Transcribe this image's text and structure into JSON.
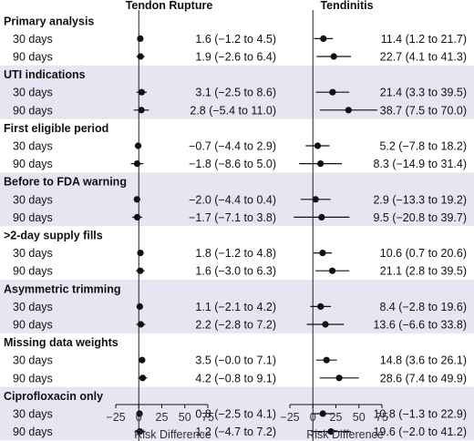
{
  "chart_data": {
    "type": "forest",
    "panels": [
      {
        "title": "Tendon Rupture",
        "xlabel": "Risk Difference",
        "xlim": [
          -25,
          75
        ],
        "ticks": [
          -25,
          0,
          25,
          50,
          75
        ]
      },
      {
        "title": "Tendinitis",
        "xlabel": "Risk Difference",
        "xlim": [
          -25,
          75
        ],
        "ticks": [
          -25,
          0,
          25,
          50,
          75
        ]
      }
    ],
    "reference_line": 0,
    "groups": [
      {
        "name": "Primary analysis",
        "shaded": false,
        "rows": [
          {
            "label": "30 days",
            "tendon_rupture": {
              "est": 1.6,
              "lo": -1.2,
              "hi": 4.5,
              "text": "1.6 (−1.2 to 4.5)"
            },
            "tendinitis": {
              "est": 11.4,
              "lo": 1.2,
              "hi": 21.7,
              "text": "11.4 (1.2 to 21.7)"
            }
          },
          {
            "label": "90 days",
            "tendon_rupture": {
              "est": 1.9,
              "lo": -2.6,
              "hi": 6.4,
              "text": "1.9 (−2.6 to 6.4)"
            },
            "tendinitis": {
              "est": 22.7,
              "lo": 4.1,
              "hi": 41.3,
              "text": "22.7 (4.1 to 41.3)"
            }
          }
        ]
      },
      {
        "name": "UTI indications",
        "shaded": true,
        "rows": [
          {
            "label": "30 days",
            "tendon_rupture": {
              "est": 3.1,
              "lo": -2.5,
              "hi": 8.6,
              "text": "3.1 (−2.5 to 8.6)"
            },
            "tendinitis": {
              "est": 21.4,
              "lo": 3.3,
              "hi": 39.5,
              "text": "21.4 (3.3 to 39.5)"
            }
          },
          {
            "label": "90 days",
            "tendon_rupture": {
              "est": 2.8,
              "lo": -5.4,
              "hi": 11.0,
              "text": "2.8 (−5.4 to 11.0)"
            },
            "tendinitis": {
              "est": 38.7,
              "lo": 7.5,
              "hi": 70.0,
              "text": "38.7 (7.5 to 70.0)"
            }
          }
        ]
      },
      {
        "name": "First eligible period",
        "shaded": false,
        "rows": [
          {
            "label": "30 days",
            "tendon_rupture": {
              "est": -0.7,
              "lo": -4.4,
              "hi": 2.9,
              "text": "−0.7 (−4.4 to 2.9)"
            },
            "tendinitis": {
              "est": 5.2,
              "lo": -7.8,
              "hi": 18.2,
              "text": "5.2 (−7.8 to 18.2)"
            }
          },
          {
            "label": "90 days",
            "tendon_rupture": {
              "est": -1.8,
              "lo": -8.6,
              "hi": 5.0,
              "text": "−1.8 (−8.6 to 5.0)"
            },
            "tendinitis": {
              "est": 8.3,
              "lo": -14.9,
              "hi": 31.4,
              "text": "8.3 (−14.9 to 31.4)"
            }
          }
        ]
      },
      {
        "name": "Before to FDA warning",
        "shaded": true,
        "rows": [
          {
            "label": "30 days",
            "tendon_rupture": {
              "est": -2.0,
              "lo": -4.4,
              "hi": 0.4,
              "text": "−2.0 (−4.4 to 0.4)"
            },
            "tendinitis": {
              "est": 2.9,
              "lo": -13.3,
              "hi": 19.2,
              "text": "2.9 (−13.3 to 19.2)"
            }
          },
          {
            "label": "90 days",
            "tendon_rupture": {
              "est": -1.7,
              "lo": -7.1,
              "hi": 3.8,
              "text": "−1.7 (−7.1 to 3.8)"
            },
            "tendinitis": {
              "est": 9.5,
              "lo": -20.8,
              "hi": 39.7,
              "text": "9.5 (−20.8 to 39.7)"
            }
          }
        ]
      },
      {
        "name": ">2-day supply fills",
        "shaded": false,
        "rows": [
          {
            "label": "30 days",
            "tendon_rupture": {
              "est": 1.8,
              "lo": -1.2,
              "hi": 4.8,
              "text": "1.8 (−1.2 to 4.8)"
            },
            "tendinitis": {
              "est": 10.6,
              "lo": 0.7,
              "hi": 20.6,
              "text": "10.6 (0.7 to 20.6)"
            }
          },
          {
            "label": "90 days",
            "tendon_rupture": {
              "est": 1.6,
              "lo": -3.0,
              "hi": 6.3,
              "text": "1.6 (−3.0 to 6.3)"
            },
            "tendinitis": {
              "est": 21.1,
              "lo": 2.8,
              "hi": 39.5,
              "text": "21.1 (2.8 to 39.5)"
            }
          }
        ]
      },
      {
        "name": "Asymmetric trimming",
        "shaded": true,
        "rows": [
          {
            "label": "30 days",
            "tendon_rupture": {
              "est": 1.1,
              "lo": -2.1,
              "hi": 4.2,
              "text": "1.1 (−2.1 to 4.2)"
            },
            "tendinitis": {
              "est": 8.4,
              "lo": -2.8,
              "hi": 19.6,
              "text": "8.4 (−2.8 to 19.6)"
            }
          },
          {
            "label": "90 days",
            "tendon_rupture": {
              "est": 2.2,
              "lo": -2.8,
              "hi": 7.2,
              "text": "2.2 (−2.8 to 7.2)"
            },
            "tendinitis": {
              "est": 13.6,
              "lo": -6.6,
              "hi": 33.8,
              "text": "13.6 (−6.6 to 33.8)"
            }
          }
        ]
      },
      {
        "name": "Missing data weights",
        "shaded": false,
        "rows": [
          {
            "label": "30 days",
            "tendon_rupture": {
              "est": 3.5,
              "lo": -0.0,
              "hi": 7.1,
              "text": "3.5 (−0.0 to 7.1)"
            },
            "tendinitis": {
              "est": 14.8,
              "lo": 3.6,
              "hi": 26.1,
              "text": "14.8 (3.6 to 26.1)"
            }
          },
          {
            "label": "90 days",
            "tendon_rupture": {
              "est": 4.2,
              "lo": -0.8,
              "hi": 9.1,
              "text": "4.2 (−0.8 to 9.1)"
            },
            "tendinitis": {
              "est": 28.6,
              "lo": 7.4,
              "hi": 49.9,
              "text": "28.6 (7.4 to 49.9)"
            }
          }
        ]
      },
      {
        "name": "Ciprofloxacin only",
        "shaded": true,
        "rows": [
          {
            "label": "30 days",
            "tendon_rupture": {
              "est": 0.8,
              "lo": -2.5,
              "hi": 4.1,
              "text": "0.8 (−2.5 to 4.1)"
            },
            "tendinitis": {
              "est": 10.8,
              "lo": -1.3,
              "hi": 22.9,
              "text": "10.8 (−1.3 to 22.9)"
            }
          },
          {
            "label": "90 days",
            "tendon_rupture": {
              "est": 1.2,
              "lo": -4.7,
              "hi": 7.2,
              "text": "1.2 (−4.7 to 7.2)"
            },
            "tendinitis": {
              "est": 19.6,
              "lo": -2.0,
              "hi": 41.2,
              "text": "19.6 (−2.0 to 41.2)"
            }
          }
        ]
      }
    ],
    "colors": {
      "shade": "#e6e6f2",
      "ink": "#111111",
      "reference": "#222222",
      "text_muted": "#333333"
    }
  }
}
